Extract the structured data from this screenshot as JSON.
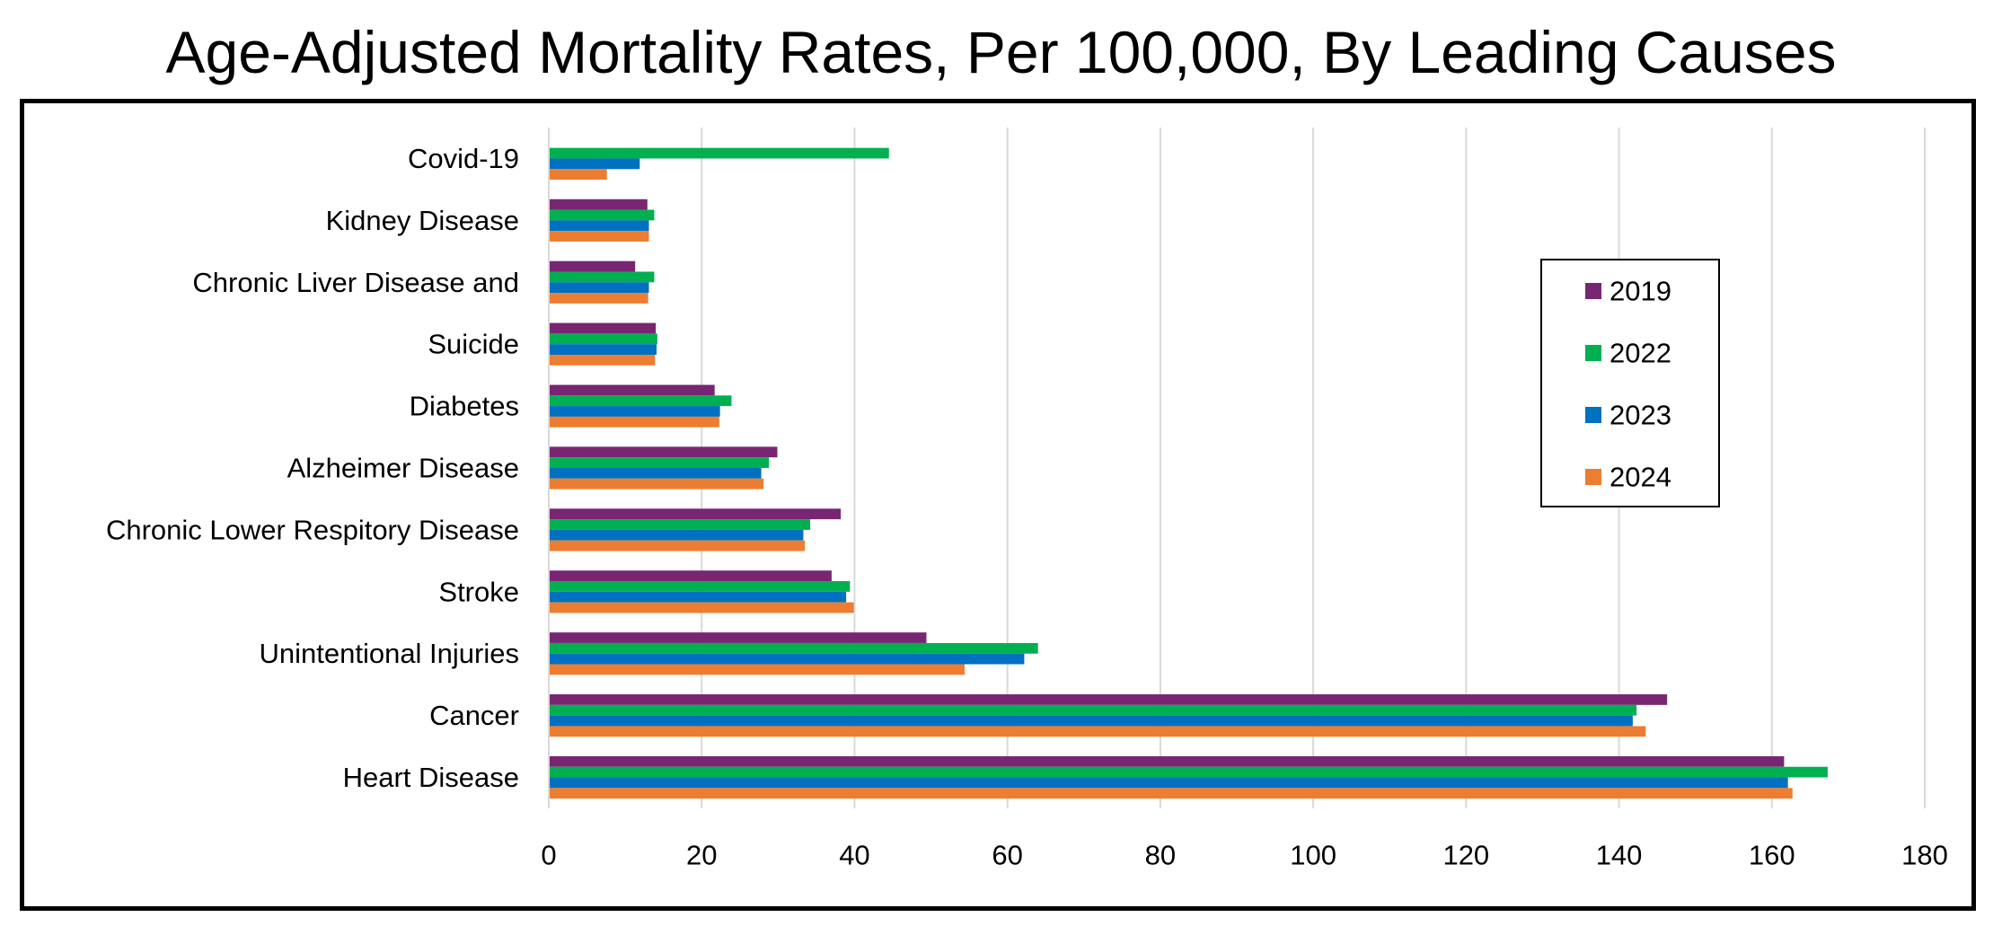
{
  "title": "Age-Adjusted Mortality Rates, Per 100,000, By Leading Causes",
  "chart_data": {
    "type": "bar",
    "orientation": "horizontal",
    "title": "Age-Adjusted Mortality Rates, Per 100,000, By Leading Causes",
    "categories": [
      "Covid-19",
      "Kidney Disease",
      "Chronic Liver Disease and",
      "Suicide",
      "Diabetes",
      "Alzheimer Disease",
      "Chronic Lower Respitory Disease",
      "Stroke",
      "Unintentional Injuries",
      "Cancer",
      "Heart Disease"
    ],
    "series": [
      {
        "name": "2019",
        "color": "#782672",
        "values": [
          0,
          12.9,
          11.3,
          14.0,
          21.7,
          29.9,
          38.2,
          37.0,
          49.4,
          146.3,
          161.6
        ]
      },
      {
        "name": "2022",
        "color": "#00B050",
        "values": [
          44.5,
          13.8,
          13.8,
          14.2,
          23.9,
          28.8,
          34.2,
          39.4,
          64.0,
          142.3,
          167.3
        ]
      },
      {
        "name": "2023",
        "color": "#0070C0",
        "values": [
          11.9,
          13.1,
          13.1,
          14.1,
          22.4,
          27.8,
          33.3,
          38.9,
          62.2,
          141.8,
          162.1
        ]
      },
      {
        "name": "2024",
        "color": "#ED7D31",
        "values": [
          7.6,
          13.1,
          13.0,
          13.9,
          22.3,
          28.1,
          33.5,
          39.9,
          54.4,
          143.5,
          162.7
        ]
      }
    ],
    "xlim": [
      0,
      180
    ],
    "xticks": [
      "0",
      "20",
      "40",
      "60",
      "80",
      "100",
      "120",
      "140",
      "160",
      "180"
    ],
    "grid": true,
    "legend_position": "right"
  }
}
